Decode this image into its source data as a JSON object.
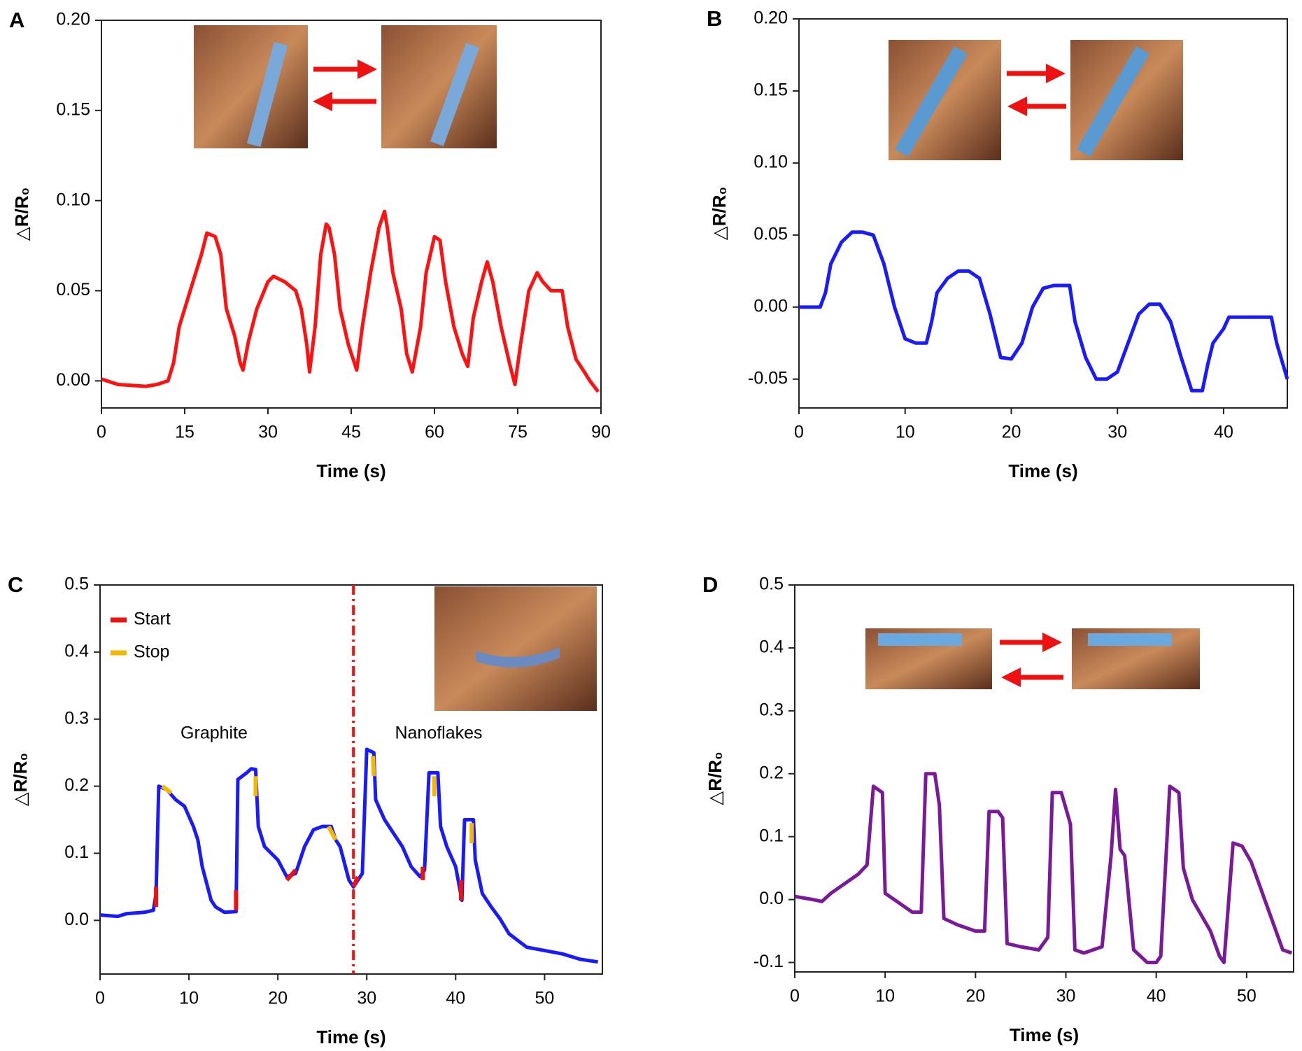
{
  "chart_data": [
    {
      "type": "line",
      "label": "A",
      "xlabel": "Time (s)",
      "ylabel": "△R/R₀",
      "color": "#ff1111",
      "xlim": [
        0,
        90
      ],
      "ylim": [
        -0.015,
        0.2
      ],
      "xticks": [
        0,
        15,
        30,
        45,
        60,
        75,
        90
      ],
      "yticks": [
        {
          "value": 0,
          "label": "0.00"
        },
        0.05,
        {
          "value": 0.1,
          "label": "0.10"
        },
        0.15,
        {
          "value": 0.2,
          "label": "0.20"
        }
      ],
      "x": [
        0,
        3,
        8,
        10,
        12,
        13,
        14,
        16,
        18,
        19,
        20.5,
        21.5,
        22.5,
        24,
        25,
        25.5,
        26.5,
        28,
        30,
        31,
        33,
        35,
        36,
        37,
        37.5,
        38.5,
        39.5,
        40.5,
        41,
        42,
        43,
        44.5,
        46,
        47,
        48.5,
        50,
        51,
        51.5,
        52.5,
        54,
        55,
        56,
        57.5,
        58.5,
        60,
        61,
        62,
        63.5,
        65,
        66,
        67,
        68.5,
        69.5,
        70.5,
        72,
        73.5,
        74.5,
        75.5,
        77,
        78.5,
        79.5,
        81,
        83,
        84,
        85.5,
        87,
        88,
        89.5
      ],
      "values": [
        0.001,
        -0.002,
        -0.003,
        -0.002,
        0,
        0.01,
        0.03,
        0.05,
        0.07,
        0.082,
        0.08,
        0.07,
        0.04,
        0.025,
        0.01,
        0.006,
        0.022,
        0.04,
        0.055,
        0.058,
        0.055,
        0.05,
        0.04,
        0.02,
        0.005,
        0.03,
        0.07,
        0.087,
        0.085,
        0.07,
        0.04,
        0.02,
        0.006,
        0.03,
        0.06,
        0.085,
        0.094,
        0.085,
        0.06,
        0.04,
        0.015,
        0.005,
        0.03,
        0.06,
        0.08,
        0.078,
        0.055,
        0.03,
        0.015,
        0.008,
        0.035,
        0.055,
        0.066,
        0.055,
        0.03,
        0.01,
        -0.002,
        0.02,
        0.05,
        0.06,
        0.055,
        0.05,
        0.05,
        0.03,
        0.012,
        0.005,
        0,
        -0.006
      ]
    },
    {
      "type": "line",
      "label": "B",
      "xlabel": "Time (s)",
      "ylabel": "△R/R₀",
      "color": "#1a1aff",
      "xlim": [
        0,
        46
      ],
      "ylim": [
        -0.07,
        0.2
      ],
      "xticks": [
        0,
        10,
        20,
        30,
        40
      ],
      "yticks": [
        -0.05,
        {
          "value": 0,
          "label": "0.00"
        },
        0.05,
        {
          "value": 0.1,
          "label": "0.10"
        },
        0.15,
        {
          "value": 0.2,
          "label": "0.20"
        }
      ],
      "x": [
        0,
        2,
        2.5,
        3,
        4,
        5,
        6,
        7,
        8,
        9,
        10,
        11,
        12,
        12.5,
        13,
        14,
        15,
        16,
        17,
        18,
        19,
        20,
        21,
        22,
        23,
        24,
        25,
        25.5,
        26,
        27,
        28,
        29,
        30,
        31,
        32,
        33,
        34,
        35,
        36,
        37,
        38,
        38.5,
        39,
        40,
        40.5,
        42,
        43.5,
        44.5,
        45,
        46
      ],
      "values": [
        0,
        0,
        0.01,
        0.03,
        0.045,
        0.052,
        0.052,
        0.05,
        0.03,
        0,
        -0.022,
        -0.025,
        -0.025,
        -0.01,
        0.01,
        0.02,
        0.025,
        0.025,
        0.02,
        -0.005,
        -0.035,
        -0.036,
        -0.025,
        0,
        0.013,
        0.015,
        0.015,
        0.015,
        -0.01,
        -0.035,
        -0.05,
        -0.05,
        -0.045,
        -0.025,
        -0.005,
        0.002,
        0.002,
        -0.01,
        -0.035,
        -0.058,
        -0.058,
        -0.04,
        -0.025,
        -0.015,
        -0.007,
        -0.007,
        -0.007,
        -0.007,
        -0.025,
        -0.05
      ]
    },
    {
      "type": "line",
      "label": "C",
      "xlabel": "Time (s)",
      "ylabel": "△R/R₀",
      "color": "#1a1aff",
      "xlim": [
        0,
        56.5
      ],
      "ylim": [
        -0.08,
        0.5
      ],
      "xticks": [
        0,
        10,
        20,
        30,
        40,
        50
      ],
      "yticks": [
        {
          "value": 0,
          "label": "0.0"
        },
        0.1,
        0.2,
        0.3,
        0.4,
        0.5
      ],
      "annotations": [
        "Graphite",
        "Nanoflakes"
      ],
      "vline": 28.5,
      "vline_color": "#ee1111",
      "x": [
        0,
        2,
        3,
        5,
        6,
        6.3,
        6.6,
        7.5,
        8.5,
        9.5,
        10.5,
        11,
        11.5,
        12.5,
        13,
        14,
        15.3,
        15.5,
        16.5,
        17,
        17.5,
        17.8,
        18.5,
        20,
        21,
        22,
        23,
        24,
        25,
        26,
        26.5,
        27,
        28,
        28.5,
        29.5,
        30,
        30.8,
        31,
        32,
        33,
        34,
        35,
        36,
        36.5,
        37,
        38,
        38.3,
        39,
        40,
        40.7,
        41,
        42,
        42.2,
        43,
        44,
        45,
        46,
        47,
        48,
        50,
        52,
        54,
        56
      ],
      "values": [
        0.008,
        0.006,
        0.01,
        0.012,
        0.015,
        0.04,
        0.2,
        0.195,
        0.18,
        0.17,
        0.14,
        0.12,
        0.08,
        0.03,
        0.02,
        0.012,
        0.013,
        0.21,
        0.22,
        0.226,
        0.225,
        0.14,
        0.11,
        0.09,
        0.065,
        0.07,
        0.11,
        0.135,
        0.14,
        0.14,
        0.12,
        0.11,
        0.06,
        0.05,
        0.07,
        0.255,
        0.25,
        0.18,
        0.15,
        0.13,
        0.11,
        0.08,
        0.065,
        0.075,
        0.22,
        0.22,
        0.14,
        0.11,
        0.08,
        0.03,
        0.15,
        0.15,
        0.09,
        0.04,
        0.02,
        0.002,
        -0.02,
        -0.03,
        -0.04,
        -0.045,
        -0.05,
        -0.058,
        -0.062
      ],
      "series": [
        {
          "name": "Start",
          "color": "#ee1111",
          "x": [
            6.3,
            6.3,
            null,
            15.3,
            15.3,
            null,
            21,
            22,
            null,
            28.5,
            29,
            null,
            36.3,
            36.3,
            null,
            40.6,
            40.6
          ],
          "values": [
            0.02,
            0.05,
            null,
            0.015,
            0.045,
            null,
            0.06,
            0.075,
            null,
            0.05,
            0.065,
            null,
            0.06,
            0.08,
            null,
            0.03,
            0.06
          ]
        },
        {
          "name": "Stop",
          "color": "#f5b800",
          "x": [
            7,
            8,
            null,
            17.5,
            17.5,
            null,
            25.7,
            26.5,
            null,
            30.7,
            30.8,
            null,
            37.6,
            37.6,
            null,
            41.8,
            41.8
          ],
          "values": [
            0.2,
            0.19,
            null,
            0.215,
            0.185,
            null,
            0.14,
            0.12,
            null,
            0.245,
            0.215,
            null,
            0.215,
            0.185,
            null,
            0.145,
            0.115
          ]
        }
      ]
    },
    {
      "type": "line",
      "label": "D",
      "xlabel": "Time (s)",
      "ylabel": "△R/R₀",
      "color": "#7a1a9a",
      "xlim": [
        0,
        55.2
      ],
      "ylim": [
        -0.115,
        0.5
      ],
      "xticks": [
        0,
        10,
        20,
        30,
        40,
        50
      ],
      "yticks": [
        -0.1,
        {
          "value": 0,
          "label": "0.0"
        },
        0.1,
        0.2,
        0.3,
        0.4,
        0.5
      ],
      "x": [
        0,
        2,
        3,
        4,
        5,
        6,
        7,
        8,
        8.7,
        9.2,
        9.7,
        10,
        11,
        12,
        13,
        14,
        14.5,
        15.5,
        16,
        16.5,
        18,
        20,
        21,
        21.5,
        22.5,
        23,
        23.5,
        25,
        27,
        28,
        28.5,
        29.5,
        30.5,
        31,
        32,
        34,
        35,
        35.5,
        36,
        36.5,
        37.5,
        39,
        40,
        40.5,
        41.5,
        42.5,
        43,
        44,
        46,
        47,
        47.5,
        48.5,
        49.5,
        50.5,
        52,
        53,
        54,
        55
      ],
      "values": [
        0.005,
        0,
        -0.003,
        0.01,
        0.02,
        0.03,
        0.04,
        0.055,
        0.18,
        0.175,
        0.17,
        0.01,
        0,
        -0.01,
        -0.02,
        -0.02,
        0.2,
        0.2,
        0.15,
        -0.03,
        -0.04,
        -0.05,
        -0.05,
        0.14,
        0.14,
        0.13,
        -0.07,
        -0.075,
        -0.08,
        -0.06,
        0.17,
        0.17,
        0.12,
        -0.08,
        -0.085,
        -0.075,
        0.07,
        0.175,
        0.08,
        0.07,
        -0.08,
        -0.1,
        -0.1,
        -0.09,
        0.18,
        0.17,
        0.05,
        0,
        -0.05,
        -0.09,
        -0.1,
        0.09,
        0.085,
        0.06,
        0,
        -0.04,
        -0.08,
        -0.085
      ]
    }
  ]
}
